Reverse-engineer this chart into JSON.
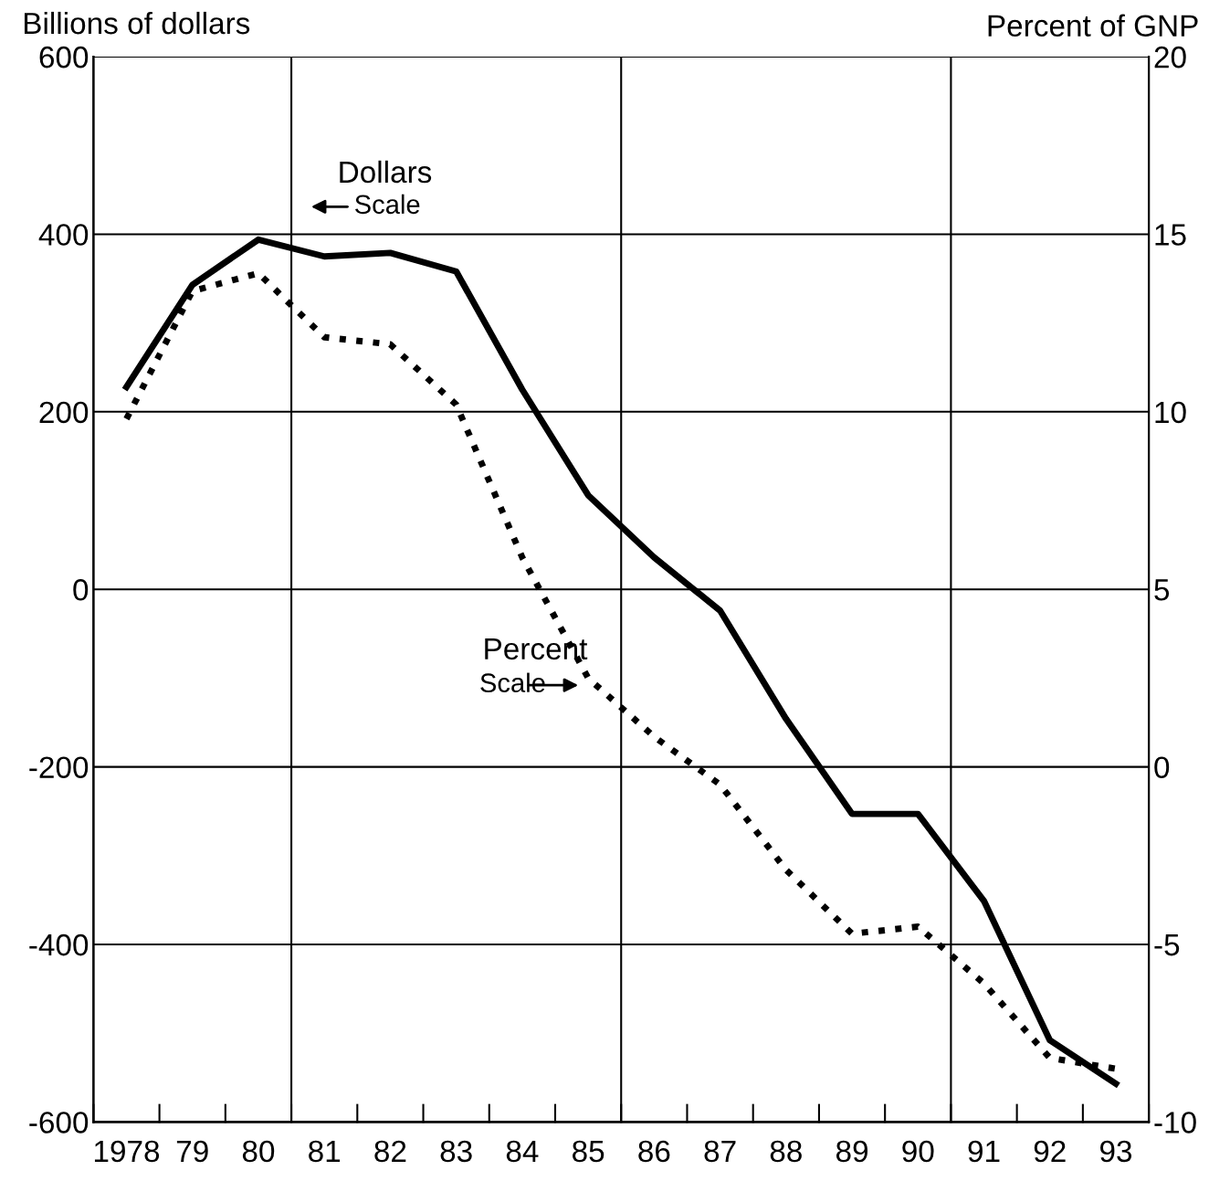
{
  "chart_data": {
    "type": "line",
    "ylabel": "Billions of dollars",
    "y2label": "Percent of GNP",
    "x": [
      1978,
      1979,
      1980,
      1981,
      1982,
      1983,
      1984,
      1985,
      1986,
      1987,
      1988,
      1989,
      1990,
      1991,
      1992,
      1993
    ],
    "series": [
      {
        "color": "#000000",
        "line_style": "solid",
        "values": [
          228,
          343,
          394,
          375,
          379,
          358,
          225,
          106,
          36,
          -24,
          -146,
          -253,
          -253,
          -351,
          -508,
          -557
        ]
      },
      {
        "color": "#000000",
        "line_style": "dotted",
        "axis": "y2",
        "values": [
          9.8,
          13.4,
          13.9,
          12.1,
          11.9,
          10.2,
          5.9,
          2.5,
          0.85,
          -0.5,
          -2.9,
          -4.7,
          -4.5,
          -6.1,
          -8.2,
          -8.5
        ]
      }
    ],
    "xlim": [
      1977.5,
      1993.5
    ],
    "xticks": [
      {
        "value": 1978,
        "label": "1978"
      },
      {
        "value": 1979,
        "label": "79"
      },
      {
        "value": 1980,
        "label": "80"
      },
      {
        "value": 1981,
        "label": "81"
      },
      {
        "value": 1982,
        "label": "82"
      },
      {
        "value": 1983,
        "label": "83"
      },
      {
        "value": 1984,
        "label": "84"
      },
      {
        "value": 1985,
        "label": "85"
      },
      {
        "value": 1986,
        "label": "86"
      },
      {
        "value": 1987,
        "label": "87"
      },
      {
        "value": 1988,
        "label": "88"
      },
      {
        "value": 1989,
        "label": "89"
      },
      {
        "value": 1990,
        "label": "90"
      },
      {
        "value": 1991,
        "label": "91"
      },
      {
        "value": 1992,
        "label": "92"
      },
      {
        "value": 1993,
        "label": "93"
      }
    ],
    "ylim": [
      -600,
      600
    ],
    "yticks": [
      -600,
      -400,
      -200,
      0,
      200,
      400,
      600
    ],
    "y2lim": [
      -10,
      20
    ],
    "y2ticks": [
      -10,
      -5,
      0,
      5,
      10,
      15,
      20
    ],
    "grid": "y",
    "ref_lines": [
      {
        "axis": "x",
        "value": 1980.5
      },
      {
        "axis": "x",
        "value": 1985.5
      },
      {
        "axis": "x",
        "value": 1990.5
      }
    ],
    "annotations": [
      "Dollars",
      "Scale",
      "Percent",
      "Scale"
    ]
  }
}
